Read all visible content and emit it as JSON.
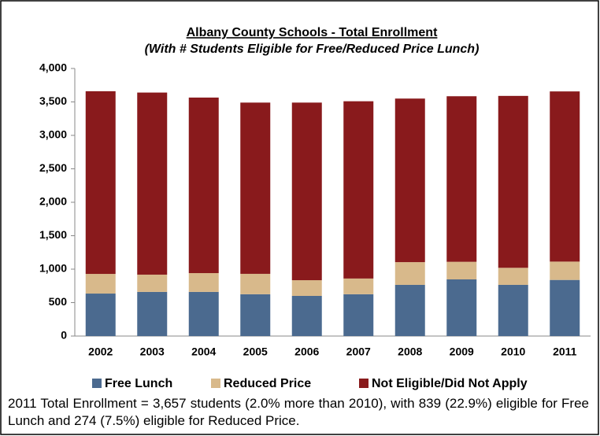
{
  "chart_data": {
    "type": "stacked_bar",
    "title": "Albany County Schools - Total Enrollment",
    "subtitle": "(With # Students Eligible for Free/Reduced Price Lunch)",
    "categories": [
      "2002",
      "2003",
      "2004",
      "2005",
      "2006",
      "2007",
      "2008",
      "2009",
      "2010",
      "2011"
    ],
    "series": [
      {
        "name": "Free Lunch",
        "color": "#4b6a8f",
        "values": [
          635,
          660,
          660,
          625,
          600,
          625,
          765,
          847,
          765,
          839
        ]
      },
      {
        "name": "Reduced Price",
        "color": "#d8b98b",
        "values": [
          294,
          258,
          281,
          305,
          235,
          235,
          340,
          263,
          255,
          274
        ]
      },
      {
        "name": "Not Eligible/Did Not Apply",
        "color": "#891a1c",
        "values": [
          2731,
          2722,
          2624,
          2560,
          2655,
          2650,
          2445,
          2475,
          2570,
          2544
        ]
      }
    ],
    "ylim": [
      0,
      4000
    ],
    "yticks": [
      0,
      500,
      {
        "value": 1000,
        "label": "1,000"
      },
      {
        "value": 1500,
        "label": "1,500"
      },
      {
        "value": 2000,
        "label": "2,000"
      },
      {
        "value": 2500,
        "label": "2,500"
      },
      {
        "value": 3000,
        "label": "3,000"
      },
      {
        "value": 3500,
        "label": "3,500"
      },
      {
        "value": 4000,
        "label": "4,000"
      }
    ],
    "grid": false,
    "legend": "bottom",
    "annotation": "2011 Total Enrollment = 3,657 students (2.0% more than 2010), with 839 (22.9%) eligible for Free Lunch and 274 (7.5%) eligible for Reduced Price."
  }
}
